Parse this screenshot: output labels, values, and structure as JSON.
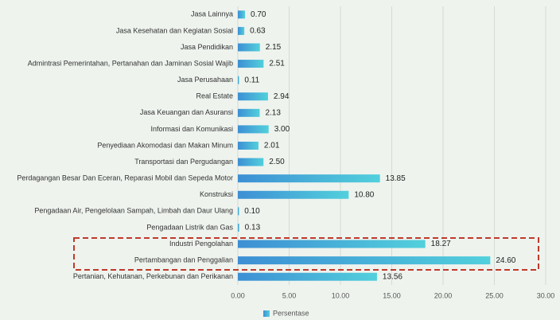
{
  "chart_data": {
    "type": "barh",
    "categories": [
      "Jasa Lainnya",
      "Jasa Kesehatan dan Kegiatan Sosial",
      "Jasa Pendidikan",
      "Admintrasi Pemerintahan, Pertanahan dan Jaminan Sosial Wajib",
      "Jasa Perusahaan",
      "Real Estate",
      "Jasa Keuangan dan Asuransi",
      "Informasi dan Komunikasi",
      "Penyediaan Akomodasi dan Makan Minum",
      "Transportasi dan Pergudangan",
      "Perdagangan Besar Dan Eceran, Reparasi Mobil dan Sepeda Motor",
      "Konstruksi",
      "Pengadaan Air, Pengelolaan Sampah, Limbah dan Daur Ulang",
      "Pengadaan Listrik dan Gas",
      "Industri Pengolahan",
      "Pertambangan dan Penggalian",
      "Pertanian, Kehutanan, Perkebunan dan Perikanan"
    ],
    "series": [
      {
        "name": "Persentase",
        "color": "#52d0dc",
        "values": [
          0.7,
          0.63,
          2.15,
          2.51,
          0.11,
          2.94,
          2.13,
          3.0,
          2.01,
          2.5,
          13.85,
          10.8,
          0.1,
          0.13,
          18.27,
          24.6,
          13.56
        ],
        "value_labels": [
          "0.70",
          "0.63",
          "2.15",
          "2.51",
          "0.11",
          "2.94",
          "2.13",
          "3.00",
          "2.01",
          "2.50",
          "13.85",
          "10.80",
          "0.10",
          "0.13",
          "18.27",
          "24.60",
          "13.56"
        ]
      }
    ],
    "xlim": [
      0,
      30
    ],
    "xticks": [
      {
        "value": 0,
        "label": "0.00"
      },
      {
        "value": 5,
        "label": "5.00"
      },
      {
        "value": 10,
        "label": "10.00"
      },
      {
        "value": 15,
        "label": "15.00"
      },
      {
        "value": 20,
        "label": "20.00"
      },
      {
        "value": 25,
        "label": "25.00"
      },
      {
        "value": 30,
        "label": "30.00"
      }
    ],
    "grid": true,
    "legend": "bottom"
  }
}
